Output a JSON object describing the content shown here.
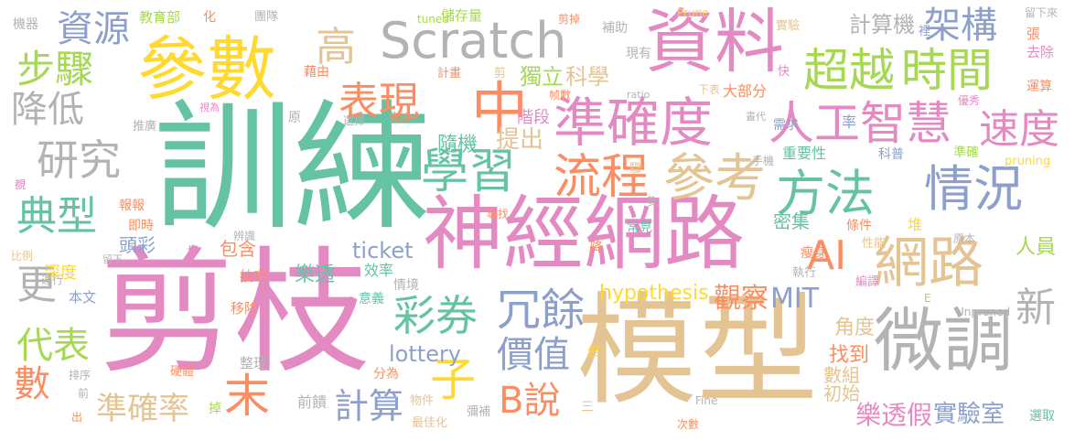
{
  "palette": {
    "pink": "#e48ac3",
    "teal": "#66c2a5",
    "orange": "#fc8d62",
    "tan": "#e5c494",
    "gray": "#b3b3b3",
    "blue": "#8da0cb",
    "lime": "#a6d854",
    "yellow": "#ffd92f"
  },
  "words": [
    {
      "text": "訓練",
      "color": "teal"
    },
    {
      "text": "剪枝",
      "color": "pink"
    },
    {
      "text": "模型",
      "color": "tan"
    },
    {
      "text": "參數",
      "color": "yellow"
    },
    {
      "text": "資料",
      "color": "pink"
    },
    {
      "text": "神經網路",
      "color": "pink"
    },
    {
      "text": "準確度",
      "color": "pink"
    },
    {
      "text": "微調",
      "color": "gray"
    },
    {
      "text": "Scratch",
      "color": "gray"
    },
    {
      "text": "中",
      "color": "orange"
    },
    {
      "text": "超越",
      "color": "lime"
    },
    {
      "text": "時間",
      "color": "lime"
    },
    {
      "text": "人工智慧",
      "color": "pink"
    },
    {
      "text": "方法",
      "color": "teal"
    },
    {
      "text": "網路",
      "color": "tan"
    },
    {
      "text": "學習",
      "color": "teal"
    },
    {
      "text": "表現",
      "color": "orange"
    },
    {
      "text": "流程",
      "color": "orange"
    },
    {
      "text": "參考",
      "color": "tan"
    },
    {
      "text": "步驟",
      "color": "lime"
    },
    {
      "text": "研究",
      "color": "gray"
    },
    {
      "text": "典型",
      "color": "teal"
    },
    {
      "text": "速度",
      "color": "pink"
    },
    {
      "text": "情況",
      "color": "blue"
    },
    {
      "text": "彩券",
      "color": "teal"
    },
    {
      "text": "冗餘",
      "color": "blue"
    },
    {
      "text": "價值",
      "color": "blue"
    },
    {
      "text": "子",
      "color": "yellow"
    },
    {
      "text": "B說",
      "color": "orange"
    },
    {
      "text": "計算",
      "color": "blue"
    },
    {
      "text": "準確率",
      "color": "tan"
    },
    {
      "text": "代表",
      "color": "lime"
    },
    {
      "text": "數",
      "color": "orange"
    },
    {
      "text": "末",
      "color": "orange"
    },
    {
      "text": "AI",
      "color": "orange"
    },
    {
      "text": "架構",
      "color": "blue"
    },
    {
      "text": "資源",
      "color": "blue"
    },
    {
      "text": "降低",
      "color": "gray"
    },
    {
      "text": "更",
      "color": "gray"
    },
    {
      "text": "高",
      "color": "tan"
    },
    {
      "text": "新",
      "color": "gray"
    },
    {
      "text": "計算機",
      "color": "gray"
    },
    {
      "text": "觀察",
      "color": "orange"
    },
    {
      "text": "MIT",
      "color": "blue"
    },
    {
      "text": "hypothesis",
      "color": "yellow"
    },
    {
      "text": "lottery",
      "color": "blue"
    },
    {
      "text": "ticket",
      "color": "blue"
    },
    {
      "text": "樂透假",
      "color": "pink"
    },
    {
      "text": "實驗室",
      "color": "blue"
    },
    {
      "text": "角度",
      "color": "tan"
    },
    {
      "text": "找到",
      "color": "orange"
    },
    {
      "text": "數組",
      "color": "tan"
    },
    {
      "text": "初始",
      "color": "tan"
    },
    {
      "text": "提出",
      "color": "tan"
    },
    {
      "text": "隨機",
      "color": "teal"
    },
    {
      "text": "科學",
      "color": "tan"
    },
    {
      "text": "獨立",
      "color": "lime"
    },
    {
      "text": "階段",
      "color": "pink"
    },
    {
      "text": "樂透",
      "color": "teal"
    },
    {
      "text": "頭彩",
      "color": "blue"
    },
    {
      "text": "深度",
      "color": "yellow"
    },
    {
      "text": "人員",
      "color": "lime"
    },
    {
      "text": "包含",
      "color": "orange"
    },
    {
      "text": "密集",
      "color": "teal"
    },
    {
      "text": "重要性",
      "color": "teal"
    },
    {
      "text": "大部分",
      "color": "orange"
    },
    {
      "text": "教育部",
      "color": "lime"
    },
    {
      "text": "儲存量",
      "color": "lime"
    },
    {
      "text": "前饋",
      "color": "gray"
    },
    {
      "text": "效率",
      "color": "teal"
    },
    {
      "text": "本文",
      "color": "blue"
    },
    {
      "text": "移除",
      "color": "orange"
    },
    {
      "text": "技巧",
      "color": "orange"
    },
    {
      "text": "整理",
      "color": "gray"
    },
    {
      "text": "硬體",
      "color": "orange"
    },
    {
      "text": "分為",
      "color": "orange"
    },
    {
      "text": "最佳化",
      "color": "tan"
    },
    {
      "text": "物件",
      "color": "tan"
    },
    {
      "text": "彌補",
      "color": "gray"
    },
    {
      "text": "選取",
      "color": "teal"
    },
    {
      "text": "次數",
      "color": "orange"
    },
    {
      "text": "Fine",
      "color": "gray"
    },
    {
      "text": "Unpruned",
      "color": "gray"
    },
    {
      "text": "pruning",
      "color": "yellow"
    },
    {
      "text": "Prune",
      "color": "yellow"
    },
    {
      "text": "tuned",
      "color": "lime"
    },
    {
      "text": "ratio",
      "color": "gray"
    },
    {
      "text": "機器",
      "color": "gray"
    },
    {
      "text": "團隊",
      "color": "gray"
    },
    {
      "text": "補助",
      "color": "gray"
    },
    {
      "text": "現有",
      "color": "gray"
    },
    {
      "text": "計畫",
      "color": "orange"
    },
    {
      "text": "剪",
      "color": "tan"
    },
    {
      "text": "下表",
      "color": "tan"
    },
    {
      "text": "實驗",
      "color": "tan"
    },
    {
      "text": "快",
      "color": "pink"
    },
    {
      "text": "裡",
      "color": "blue"
    },
    {
      "text": "張",
      "color": "orange"
    },
    {
      "text": "去除",
      "color": "pink"
    },
    {
      "text": "運算",
      "color": "orange"
    },
    {
      "text": "優秀",
      "color": "pink"
    },
    {
      "text": "需求",
      "color": "blue"
    },
    {
      "text": "率",
      "color": "blue"
    },
    {
      "text": "科普",
      "color": "blue"
    },
    {
      "text": "準確",
      "color": "lime"
    },
    {
      "text": "條件",
      "color": "orange"
    },
    {
      "text": "性能",
      "color": "tan"
    },
    {
      "text": "堆",
      "color": "yellow"
    },
    {
      "text": "瘦身",
      "color": "orange"
    },
    {
      "text": "原本",
      "color": "gray"
    },
    {
      "text": "執行",
      "color": "gray"
    },
    {
      "text": "編譯",
      "color": "pink"
    },
    {
      "text": "常見",
      "color": "teal"
    },
    {
      "text": "尋找",
      "color": "orange"
    },
    {
      "text": "辨識",
      "color": "gray"
    },
    {
      "text": "藉由",
      "color": "orange"
    },
    {
      "text": "原",
      "color": "gray"
    },
    {
      "text": "選擇",
      "color": "gray"
    },
    {
      "text": "告訴",
      "color": "orange"
    },
    {
      "text": "推廣",
      "color": "gray"
    },
    {
      "text": "視為",
      "color": "pink"
    },
    {
      "text": "報報",
      "color": "orange"
    },
    {
      "text": "即時",
      "color": "orange"
    },
    {
      "text": "比例",
      "color": "tan"
    },
    {
      "text": "運行",
      "color": "gray"
    },
    {
      "text": "留下",
      "color": "gray"
    },
    {
      "text": "意義",
      "color": "teal"
    },
    {
      "text": "情境",
      "color": "gray"
    },
    {
      "text": "排序",
      "color": "gray"
    },
    {
      "text": "前",
      "color": "gray"
    },
    {
      "text": "出",
      "color": "orange"
    },
    {
      "text": "掉",
      "color": "lime"
    },
    {
      "text": "三",
      "color": "tan"
    },
    {
      "text": "倍",
      "color": "yellow"
    },
    {
      "text": "E",
      "color": "lime"
    },
    {
      "text": "手機",
      "color": "gray"
    },
    {
      "text": "晝代",
      "color": "gray"
    },
    {
      "text": "帧數",
      "color": "orange"
    },
    {
      "text": "剪掉",
      "color": "orange"
    },
    {
      "text": "留下來",
      "color": "gray"
    },
    {
      "text": "化",
      "color": "orange"
    },
    {
      "text": "參",
      "color": "gray"
    },
    {
      "text": "驟",
      "color": "tan"
    },
    {
      "text": "降",
      "color": "orange"
    },
    {
      "text": "步",
      "color": "pink"
    },
    {
      "text": "覩",
      "color": "pink"
    }
  ]
}
